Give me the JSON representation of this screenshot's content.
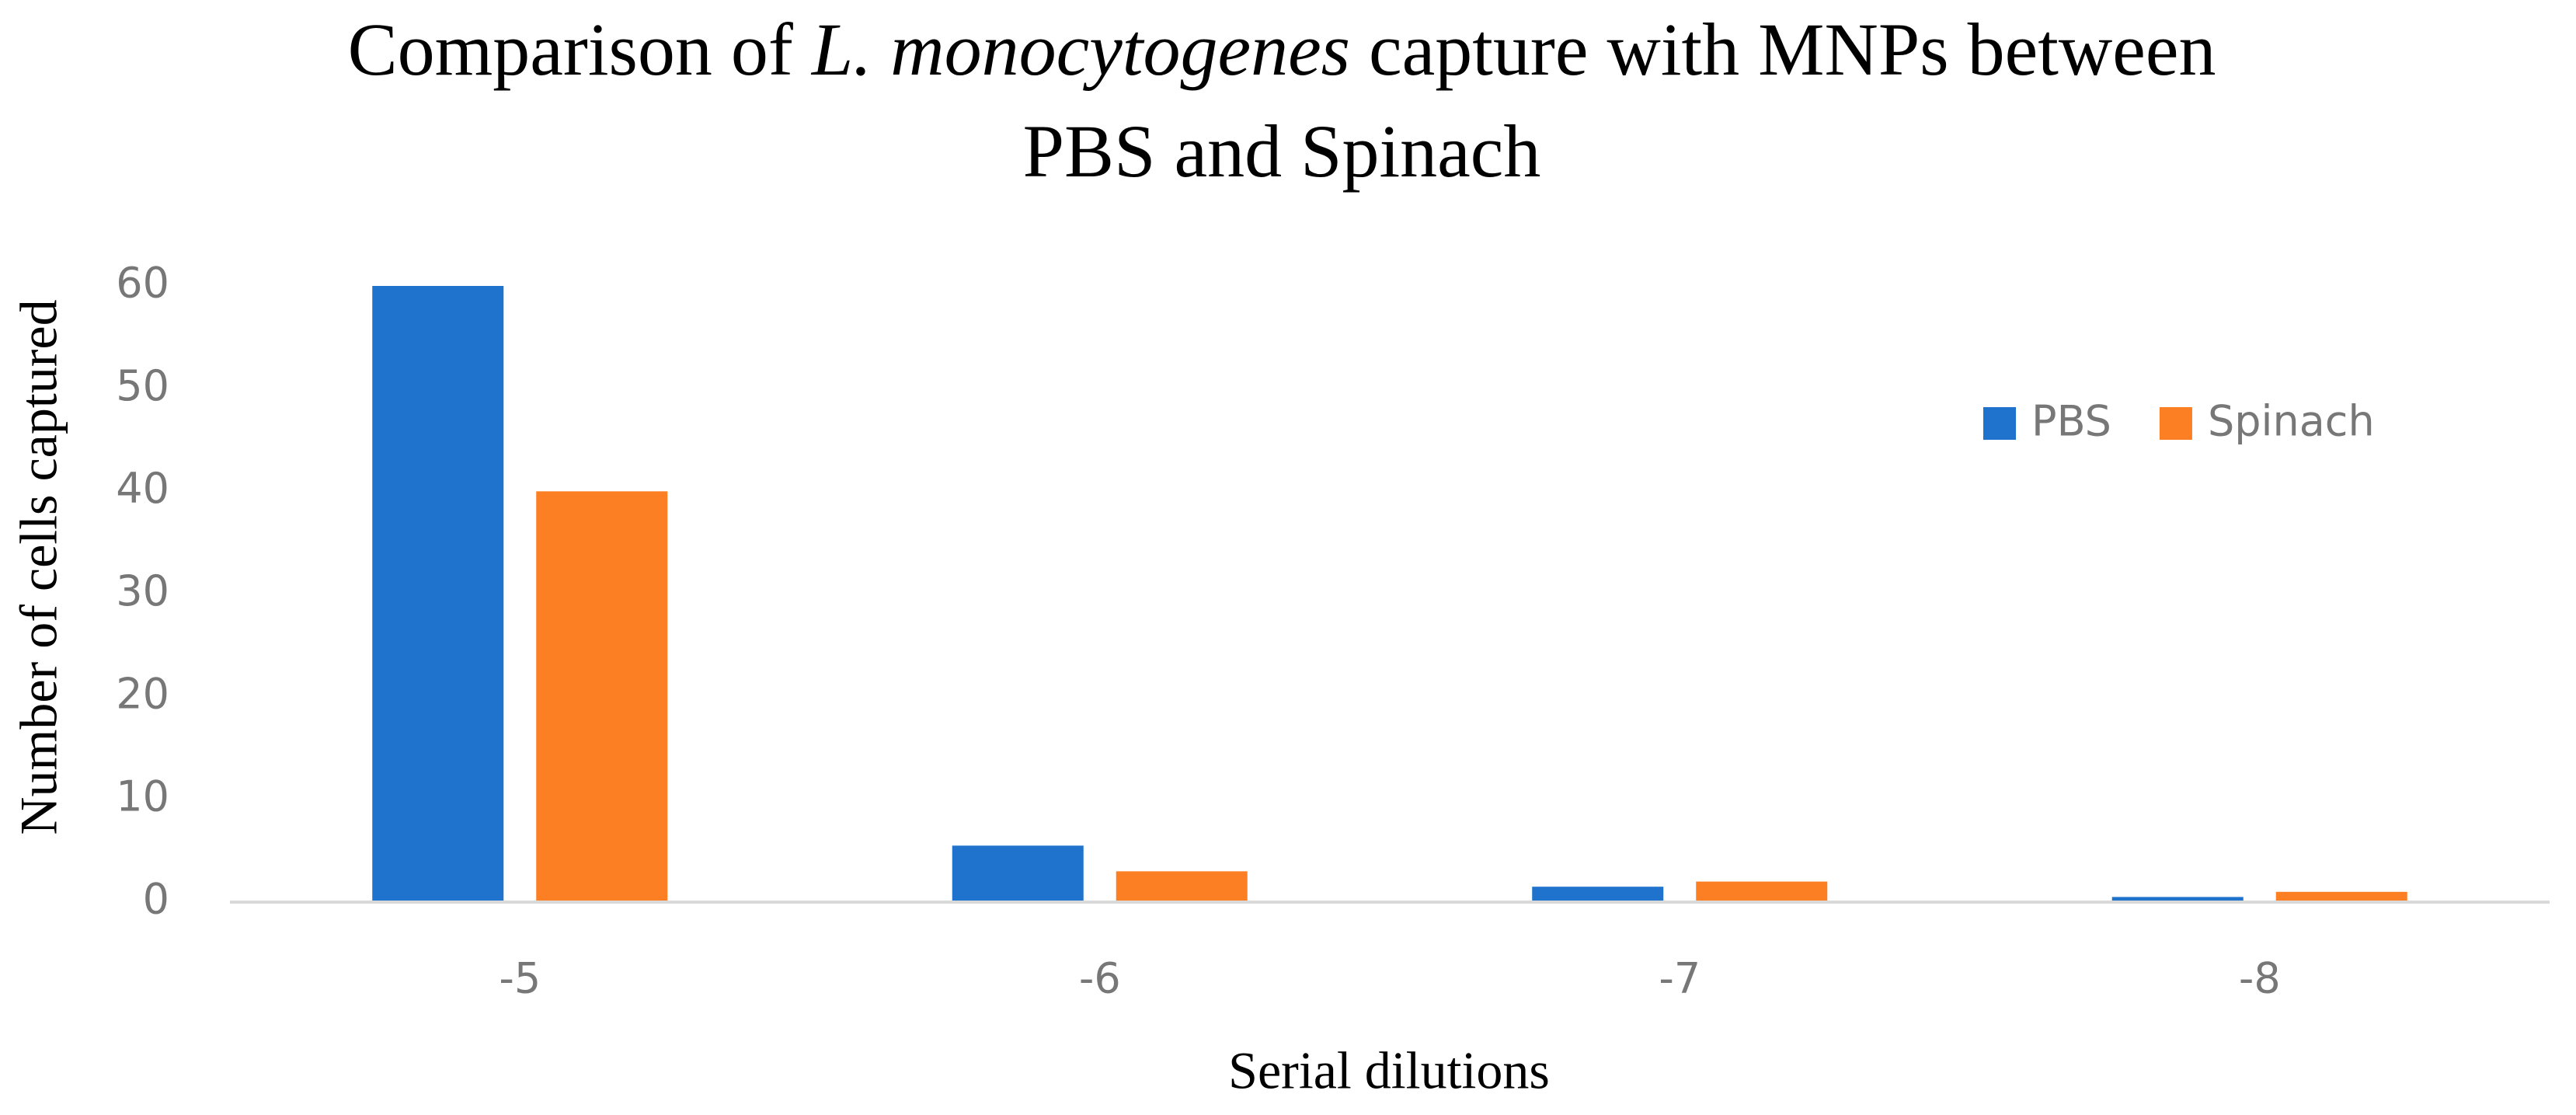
{
  "chart_data": {
    "type": "bar",
    "title": [
      [
        {
          "text": "Comparison of "
        },
        {
          "text": "L. monocytogenes",
          "italic": true
        },
        {
          "text": " capture with MNPs between"
        }
      ],
      [
        {
          "text": "PBS and Spinach"
        }
      ]
    ],
    "x_label": "Serial dilutions",
    "y_label": "Number of cells captured",
    "categories": [
      "-5",
      "-6",
      "-7",
      "-8"
    ],
    "series": [
      {
        "name": "PBS",
        "color": "#1f73cc",
        "values": [
          60,
          5.5,
          1.5,
          0.5
        ]
      },
      {
        "name": "Spinach",
        "color": "#fd7f23",
        "values": [
          40,
          3,
          2,
          1
        ]
      }
    ],
    "ylim": [
      0,
      60
    ],
    "yticks": [
      0,
      10,
      20,
      30,
      40,
      50,
      60
    ],
    "grid": false
  }
}
